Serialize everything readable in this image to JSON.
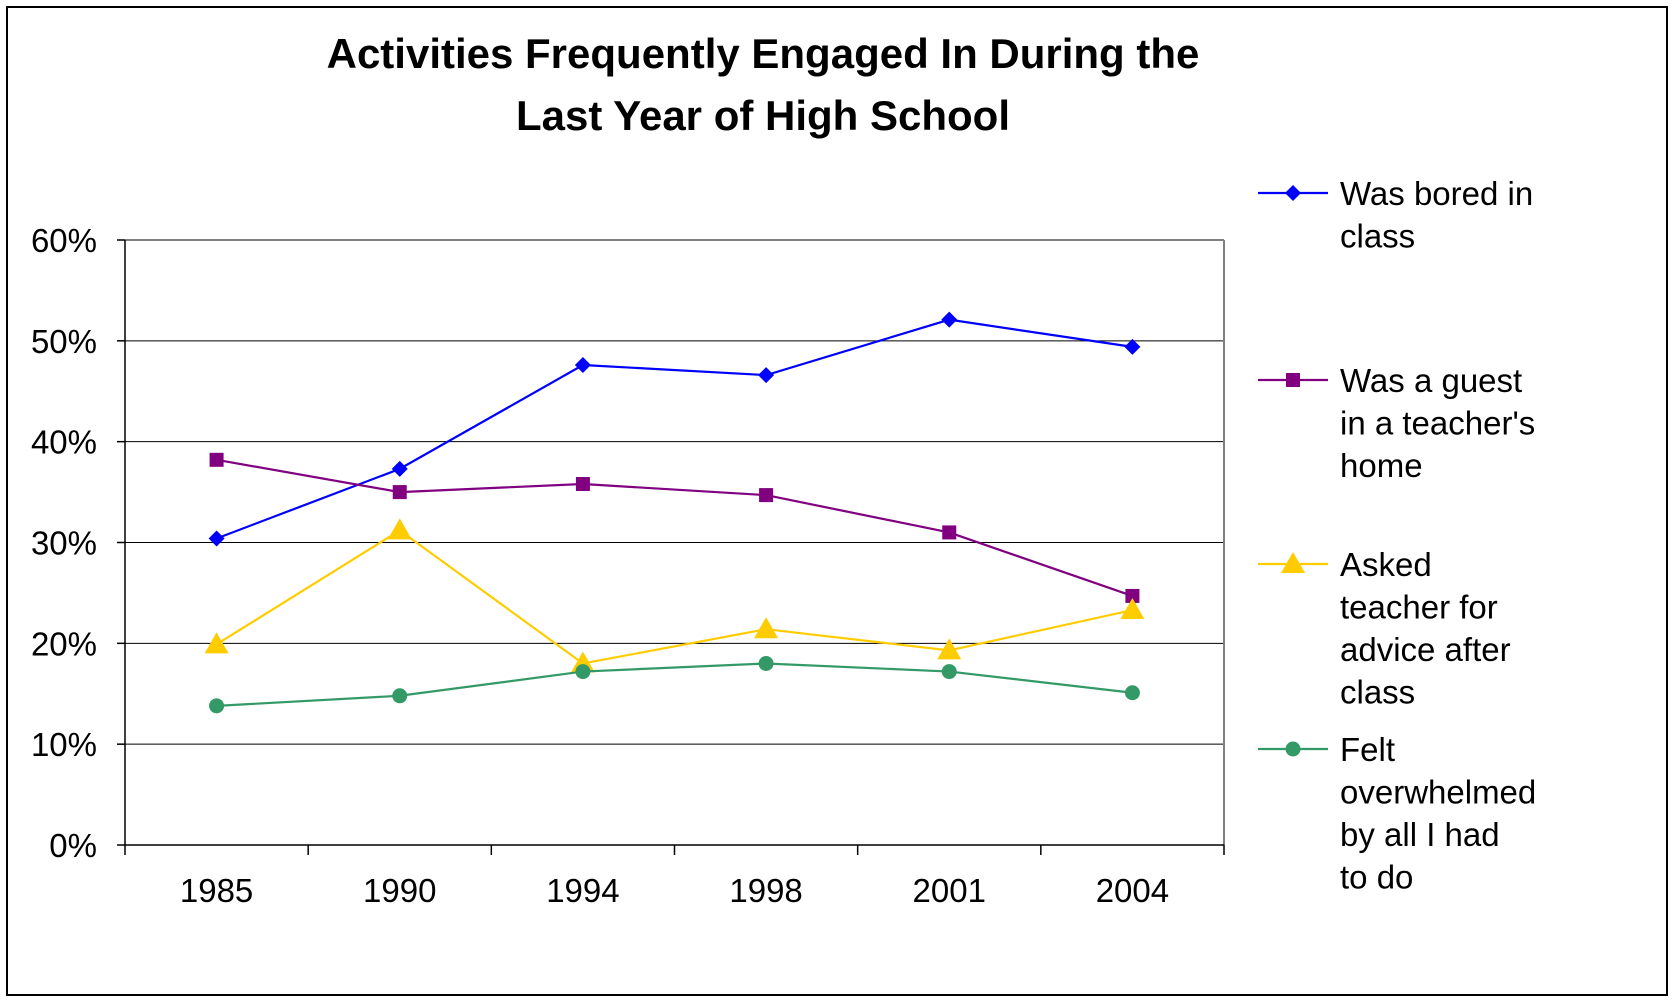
{
  "chart_data": {
    "type": "line",
    "title": "Activities Frequently Engaged In During the Last Year of High School",
    "title_lines": [
      "Activities Frequently Engaged In During the",
      "Last Year of High School"
    ],
    "xlabel": "",
    "ylabel": "",
    "categories": [
      "1985",
      "1990",
      "1994",
      "1998",
      "2001",
      "2004"
    ],
    "ylim": [
      0,
      60
    ],
    "yticks": [
      0,
      10,
      20,
      30,
      40,
      50,
      60
    ],
    "ytick_labels": [
      "0%",
      "10%",
      "20%",
      "30%",
      "40%",
      "50%",
      "60%"
    ],
    "grid": true,
    "legend_position": "right",
    "series": [
      {
        "name": "Was bored in class",
        "legend_lines": [
          "Was bored in",
          "class"
        ],
        "values": [
          30.4,
          37.3,
          47.6,
          46.6,
          52.1,
          49.4
        ],
        "color": "#0000ff",
        "marker": "diamond"
      },
      {
        "name": "Was a guest in a teacher's home",
        "legend_lines": [
          "Was a guest",
          "in a teacher's",
          "home"
        ],
        "values": [
          38.2,
          35.0,
          35.8,
          34.7,
          31.0,
          24.7
        ],
        "color": "#800080",
        "marker": "square"
      },
      {
        "name": "Asked teacher for advice after class",
        "legend_lines": [
          "Asked",
          "teacher for",
          "advice after",
          "class"
        ],
        "values": [
          19.9,
          31.2,
          18.0,
          21.4,
          19.3,
          23.3
        ],
        "color": "#ffcc00",
        "marker": "triangle"
      },
      {
        "name": "Felt overwhelmed by all I had to do",
        "legend_lines": [
          "Felt",
          "overwhelmed",
          "by all I had",
          "to do"
        ],
        "values": [
          13.8,
          14.8,
          17.2,
          18.0,
          17.2,
          15.1
        ],
        "color": "#339966",
        "marker": "circle"
      }
    ]
  }
}
